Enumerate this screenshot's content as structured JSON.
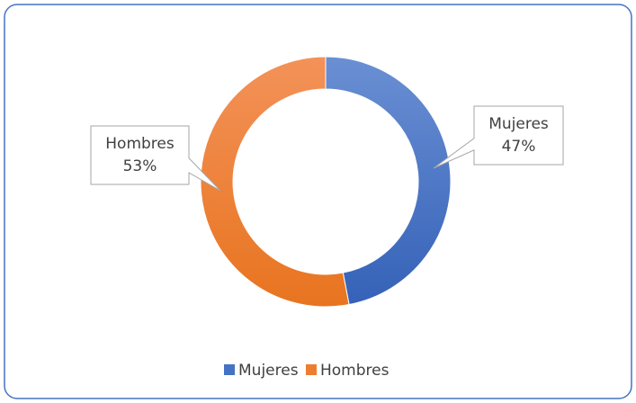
{
  "chart_data": {
    "type": "donut",
    "categories": [
      "Mujeres",
      "Hombres"
    ],
    "values": [
      47,
      53
    ],
    "value_labels": [
      "47%",
      "53%"
    ],
    "colors": [
      "#4472c4",
      "#ed7d31"
    ],
    "legend": "bottom"
  }
}
